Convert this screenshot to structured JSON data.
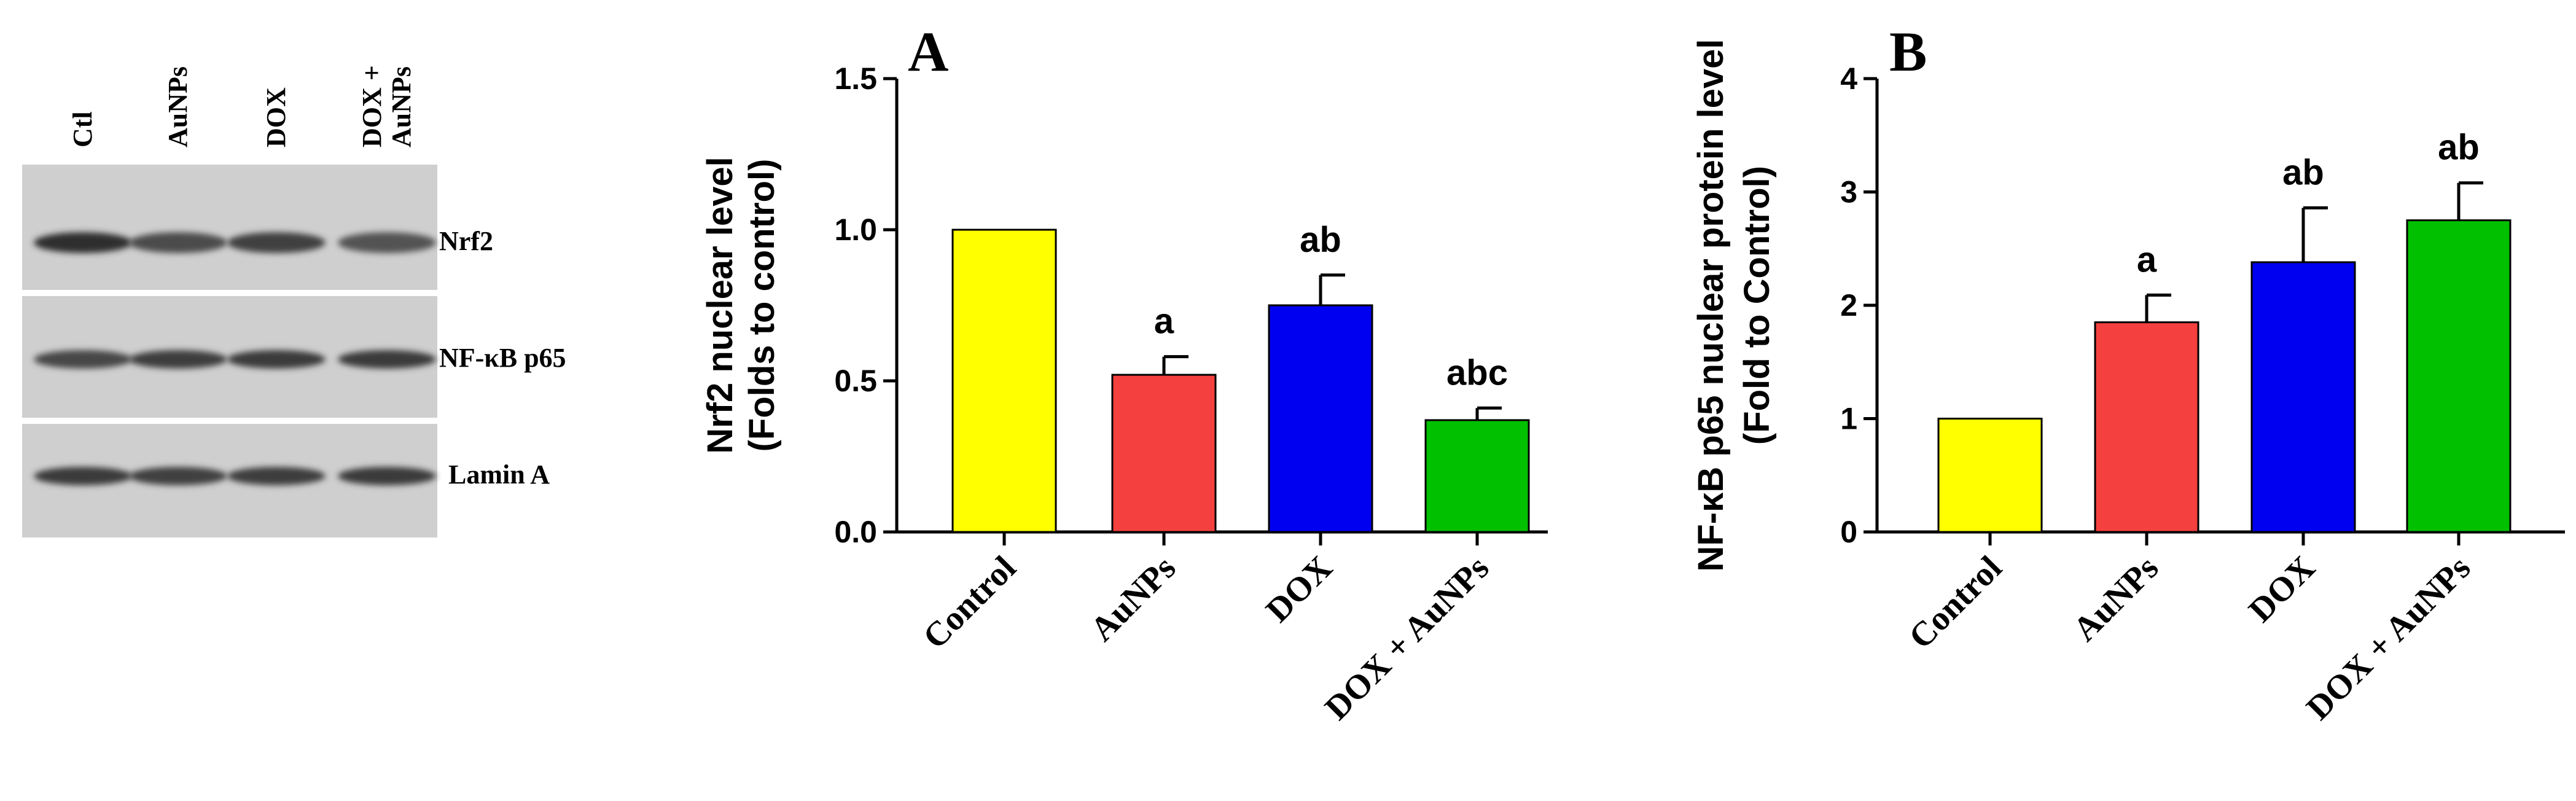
{
  "blot": {
    "lanes": [
      "Ctl",
      "AuNPs",
      "DOX",
      "DOX +\nAuNPs"
    ],
    "rows": [
      "Nrf2",
      "NF-κB p65",
      "Lamin A"
    ]
  },
  "chart_data": [
    {
      "type": "bar",
      "panel_letter": "A",
      "categories": [
        "Control",
        "AuNPs",
        "DOX",
        "DOX + AuNPs"
      ],
      "values": [
        1.0,
        0.52,
        0.75,
        0.37
      ],
      "errors": [
        0,
        0.06,
        0.1,
        0.04
      ],
      "annotations": [
        "",
        "a",
        "ab",
        "abc"
      ],
      "colors": [
        "#ffff00",
        "#f54040",
        "#0000f0",
        "#00c000"
      ],
      "ylabel_lines": [
        "Nrf2 nuclear level",
        "(Folds to control)"
      ],
      "yticks": [
        "0.0",
        "0.5",
        "1.0",
        "1.5"
      ],
      "ylim": [
        0,
        1.5
      ],
      "grid": false,
      "legend": "none"
    },
    {
      "type": "bar",
      "panel_letter": "B",
      "categories": [
        "Control",
        "AuNPs",
        "DOX",
        "DOX + AuNPs"
      ],
      "values": [
        1.0,
        1.85,
        2.38,
        2.75
      ],
      "errors": [
        0,
        0.24,
        0.48,
        0.33
      ],
      "annotations": [
        "",
        "a",
        "ab",
        "ab"
      ],
      "colors": [
        "#ffff00",
        "#f54040",
        "#0000f0",
        "#00c000"
      ],
      "ylabel_lines": [
        "NF-κB p65 nuclear protein level",
        "(Fold to Control)"
      ],
      "yticks": [
        "0",
        "1",
        "2",
        "3",
        "4"
      ],
      "ylim": [
        0,
        4
      ],
      "grid": false,
      "legend": "none"
    }
  ]
}
